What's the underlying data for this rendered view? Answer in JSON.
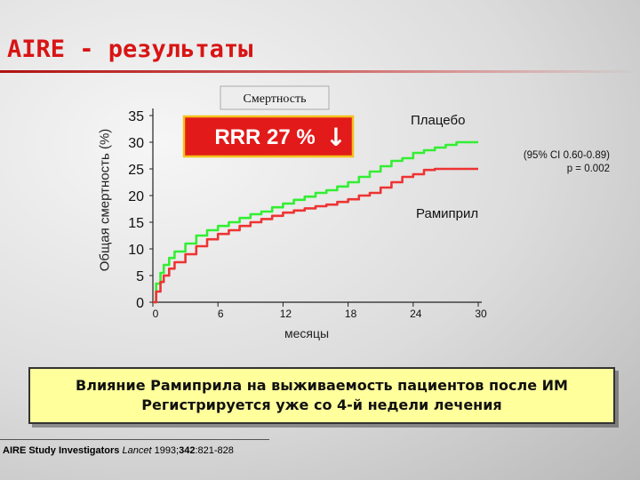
{
  "slide": {
    "title": "AIRE - результаты",
    "note_line1": "Влияние Рамиприла на выживаемость пациентов после ИМ",
    "note_line2": "Регистрируется уже со 4-й недели лечения",
    "citation_authors": "AIRE Study Investigators",
    "citation_journal": "Lancet",
    "citation_year": "1993;",
    "citation_volume": "342",
    "citation_pages": ":821-828"
  },
  "colors": {
    "title": "#d81414",
    "placebo": "#33ee33",
    "ramipril": "#ee3333",
    "rrr_box": "#e21a1a",
    "rrr_box_border": "#f4c01c",
    "note_box": "#ffff9c"
  },
  "chart_data": {
    "type": "line",
    "title": "Смертность",
    "ylabel": "Общая смертность (%)",
    "xlabel": "месяцы",
    "xlim": [
      0,
      30
    ],
    "ylim": [
      0,
      35
    ],
    "xticks": [
      "0",
      "6",
      "12",
      "18",
      "24",
      "30"
    ],
    "yticks": [
      "0",
      "5",
      "10",
      "15",
      "20",
      "25",
      "30",
      "35"
    ],
    "series": [
      {
        "name": "Плацебо",
        "color": "#33ee33",
        "x": [
          0,
          0.3,
          0.7,
          1,
          1.5,
          2,
          3,
          4,
          5,
          6,
          7,
          8,
          9,
          10,
          11,
          12,
          13,
          14,
          15,
          16,
          17,
          18,
          19,
          20,
          21,
          22,
          23,
          24,
          25,
          26,
          27,
          28,
          30
        ],
        "y": [
          0,
          3.5,
          5.5,
          7,
          8.3,
          9.5,
          11,
          12.5,
          13.5,
          14.3,
          15,
          15.8,
          16.5,
          17,
          17.8,
          18.5,
          19.2,
          19.8,
          20.5,
          21,
          21.7,
          22.5,
          23.5,
          24.5,
          25.5,
          26.5,
          27,
          28,
          28.5,
          29,
          29.5,
          30,
          30
        ]
      },
      {
        "name": "Рамиприл",
        "color": "#ee3333",
        "x": [
          0,
          0.3,
          0.7,
          1,
          1.5,
          2,
          3,
          4,
          5,
          6,
          7,
          8,
          9,
          10,
          11,
          12,
          13,
          14,
          15,
          16,
          17,
          18,
          19,
          20,
          21,
          22,
          23,
          24,
          25,
          26,
          27,
          28,
          30
        ],
        "y": [
          0,
          2,
          3.8,
          5,
          6.3,
          7.5,
          9,
          10.5,
          11.8,
          12.8,
          13.5,
          14.3,
          15,
          15.6,
          16.2,
          16.8,
          17.2,
          17.6,
          18,
          18.3,
          18.8,
          19.3,
          20,
          20.5,
          21.5,
          22.5,
          23.5,
          24,
          24.8,
          25,
          25,
          25,
          25
        ]
      }
    ],
    "annotations": {
      "rrr": "RRR 27 %",
      "rrr_arrow": "↓",
      "ci": "(95% CI 0.60-0.89)",
      "p": "p = 0.002"
    }
  }
}
